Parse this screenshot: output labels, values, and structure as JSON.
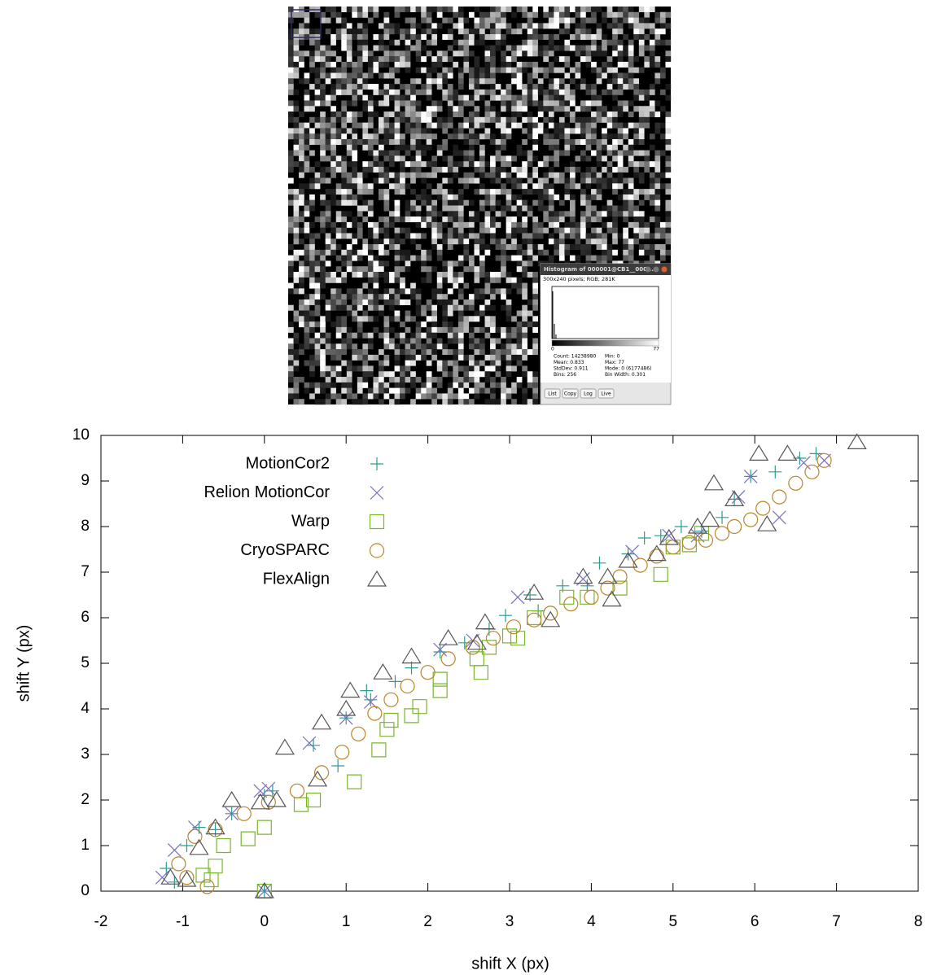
{
  "histogram_window": {
    "title": "Histogram of 000001@CB1__000...",
    "info": "300x240 pixels; RGB; 281K",
    "axis_min": "0",
    "axis_max": "77",
    "stats_left": [
      "Count: 14238980",
      "Mean: 0.833",
      "StdDev: 0.911",
      "Bins: 256"
    ],
    "stats_right": [
      "Min: 0",
      "Max: 77",
      "Mode: 0 (6177486)",
      "Bin Width: 0.301"
    ],
    "buttons": [
      "List",
      "Copy",
      "Log",
      "Live"
    ]
  },
  "chart_data": {
    "type": "scatter",
    "xlabel": "shift X (px)",
    "ylabel": "shift Y (px)",
    "xlim": [
      -2,
      8
    ],
    "xticks": [
      -2,
      -1,
      0,
      1,
      2,
      3,
      4,
      5,
      6,
      7,
      8
    ],
    "ylim": [
      0,
      10
    ],
    "yticks": [
      0,
      1,
      2,
      3,
      4,
      5,
      6,
      7,
      8,
      9,
      10
    ],
    "legend": "upper left",
    "series": [
      {
        "name": "MotionCor2",
        "marker": "plus",
        "color": "#2a9d8f",
        "x": [
          0,
          -1.2,
          -1.1,
          -0.95,
          -0.8,
          -0.6,
          -0.4,
          0,
          0.1,
          0.6,
          0.9,
          1.0,
          1.25,
          1.3,
          1.6,
          1.8,
          2.15,
          2.45,
          2.75,
          2.95,
          3.25,
          3.35,
          3.65,
          3.95,
          4.1,
          4.45,
          4.65,
          4.85,
          5.1,
          5.35,
          5.6,
          5.75,
          5.95,
          6.25,
          6.55,
          6.75
        ],
        "values": [
          0,
          0.5,
          0.2,
          1.0,
          1.4,
          1.35,
          1.7,
          2.1,
          2.2,
          3.2,
          2.75,
          3.8,
          4.4,
          4.2,
          4.6,
          4.9,
          5.25,
          5.45,
          5.75,
          6.05,
          6.5,
          6.15,
          6.7,
          6.7,
          7.2,
          7.4,
          7.75,
          7.8,
          8.0,
          7.9,
          8.2,
          8.6,
          9.1,
          9.2,
          9.5,
          9.6
        ]
      },
      {
        "name": "Relion MotionCor",
        "marker": "cross",
        "color": "#7b6fc0",
        "x": [
          0,
          -1.25,
          -1.1,
          -0.85,
          -0.4,
          -0.05,
          0.05,
          0.55,
          1.0,
          1.3,
          2.15,
          2.55,
          3.1,
          3.9,
          4.5,
          4.95,
          5.3,
          5.8,
          5.95,
          6.3,
          6.6,
          6.85
        ],
        "values": [
          0,
          0.3,
          0.9,
          1.4,
          1.7,
          2.2,
          2.25,
          3.25,
          3.8,
          4.15,
          5.3,
          5.5,
          6.45,
          6.85,
          7.45,
          7.8,
          7.8,
          8.65,
          9.1,
          8.2,
          9.4,
          9.45
        ]
      },
      {
        "name": "Warp",
        "marker": "square",
        "color": "#7ab52e",
        "x": [
          0,
          -0.75,
          -0.65,
          -0.6,
          -0.5,
          -0.2,
          0,
          0.45,
          0.6,
          1.1,
          1.4,
          1.5,
          1.55,
          1.8,
          1.9,
          2.15,
          2.15,
          2.6,
          2.65,
          2.75,
          3.0,
          3.1,
          3.3,
          3.7,
          3.95,
          4.35,
          4.85,
          5.0,
          5.2,
          5.35
        ],
        "values": [
          0,
          0.35,
          0.25,
          0.55,
          1.0,
          1.15,
          1.4,
          1.9,
          2.0,
          2.4,
          3.1,
          3.55,
          3.75,
          3.85,
          4.05,
          4.4,
          4.65,
          5.1,
          4.8,
          5.35,
          5.6,
          5.55,
          6.0,
          6.45,
          6.45,
          6.65,
          6.95,
          7.55,
          7.6,
          7.85
        ]
      },
      {
        "name": "CryoSPARC",
        "marker": "circle",
        "color": "#b8862b",
        "x": [
          -1.05,
          -0.95,
          -0.7,
          -0.85,
          -0.6,
          -0.25,
          0.05,
          0.4,
          0.7,
          0.95,
          1.15,
          1.35,
          1.55,
          1.75,
          2.0,
          2.25,
          2.55,
          2.8,
          3.05,
          3.3,
          3.5,
          3.75,
          4.0,
          4.2,
          4.35,
          4.6,
          4.8,
          5.0,
          5.2,
          5.4,
          5.6,
          5.75,
          5.95,
          6.1,
          6.3,
          6.5,
          6.7,
          6.85
        ],
        "values": [
          0.6,
          0.3,
          0.1,
          1.2,
          1.35,
          1.7,
          1.95,
          2.2,
          2.6,
          3.05,
          3.45,
          3.9,
          4.2,
          4.5,
          4.8,
          5.1,
          5.35,
          5.55,
          5.8,
          5.95,
          6.1,
          6.3,
          6.45,
          6.65,
          6.9,
          7.15,
          7.35,
          7.55,
          7.65,
          7.7,
          7.85,
          8.0,
          8.15,
          8.4,
          8.65,
          8.95,
          9.2,
          9.45
        ]
      },
      {
        "name": "FlexAlign",
        "marker": "triangle",
        "color": "#555555",
        "x": [
          0,
          -1.15,
          -0.95,
          -0.8,
          -0.6,
          -0.4,
          -0.05,
          0.15,
          0.25,
          0.65,
          0.7,
          1.0,
          1.05,
          1.45,
          1.8,
          2.25,
          2.6,
          2.7,
          3.3,
          3.5,
          3.9,
          4.2,
          4.25,
          4.45,
          4.8,
          4.95,
          5.3,
          5.45,
          5.5,
          5.75,
          6.05,
          6.15,
          6.4,
          7.25
        ],
        "values": [
          0,
          0.3,
          0.25,
          0.95,
          1.4,
          2.0,
          1.95,
          2.0,
          3.15,
          2.45,
          3.7,
          4.0,
          4.4,
          4.8,
          5.15,
          5.55,
          5.45,
          5.9,
          6.55,
          5.95,
          6.9,
          6.9,
          6.4,
          7.25,
          7.4,
          7.75,
          8.0,
          8.15,
          8.95,
          8.6,
          9.6,
          8.05,
          9.6,
          9.85
        ]
      }
    ]
  }
}
